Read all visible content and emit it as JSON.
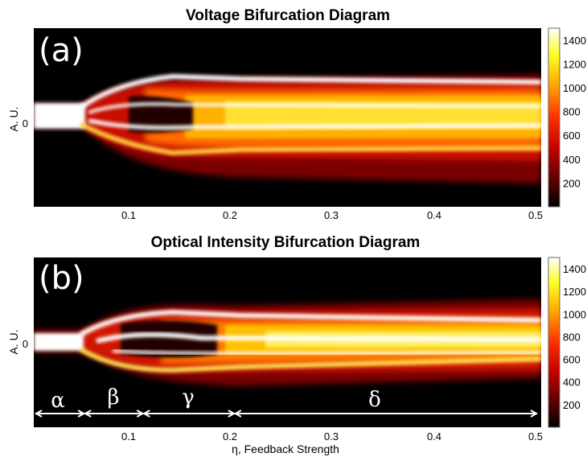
{
  "chart_data": [
    {
      "type": "heatmap",
      "panel_label": "(a)",
      "title": "Voltage Bifurcation Diagram",
      "xlabel": "",
      "ylabel": "A. U.",
      "xlim": [
        0,
        0.5
      ],
      "x_ticks": [
        "0.1",
        "0.2",
        "0.3",
        "0.4",
        "0.5"
      ],
      "x_tick_values": [
        0.1,
        0.2,
        0.3,
        0.4,
        0.5
      ],
      "y_ticks": [
        "0"
      ],
      "colorbar": {
        "range": [
          0,
          1500
        ],
        "ticks": [
          "200",
          "400",
          "600",
          "800",
          "1000",
          "1200",
          "1400"
        ],
        "tick_values": [
          200,
          400,
          600,
          800,
          1000,
          1200,
          1400
        ],
        "colormap": "hot"
      }
    },
    {
      "type": "heatmap",
      "panel_label": "(b)",
      "title": "Optical Intensity Bifurcation Diagram",
      "xlabel": "η, Feedback Strength",
      "ylabel": "A. U.",
      "xlim": [
        0,
        0.5
      ],
      "x_ticks": [
        "0.1",
        "0.2",
        "0.3",
        "0.4",
        "0.5"
      ],
      "x_tick_values": [
        0.1,
        0.2,
        0.3,
        0.4,
        0.5
      ],
      "y_ticks": [
        "0"
      ],
      "regions": [
        {
          "label": "α",
          "from": 0.0,
          "to": 0.05
        },
        {
          "label": "β",
          "from": 0.05,
          "to": 0.108
        },
        {
          "label": "γ",
          "from": 0.108,
          "to": 0.198
        },
        {
          "label": "δ",
          "from": 0.198,
          "to": 0.5
        }
      ],
      "colorbar": {
        "range": [
          0,
          1500
        ],
        "ticks": [
          "200",
          "400",
          "600",
          "800",
          "1000",
          "1200",
          "1400"
        ],
        "tick_values": [
          200,
          400,
          600,
          800,
          1000,
          1200,
          1400
        ],
        "colormap": "hot"
      }
    }
  ]
}
